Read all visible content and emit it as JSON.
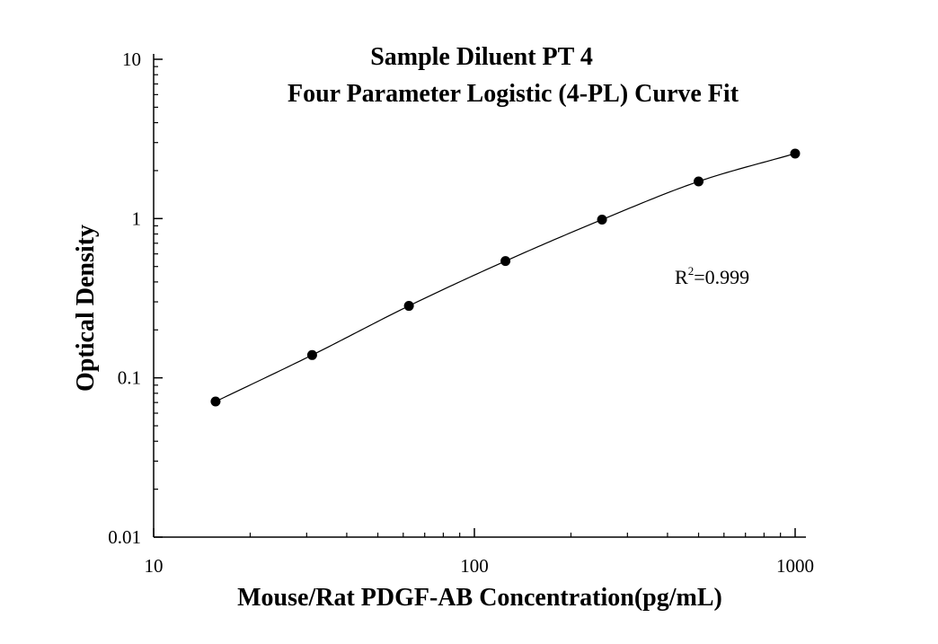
{
  "chart_data": {
    "type": "scatter",
    "title": "Sample Diluent PT 4",
    "subtitle": "Four Parameter Logistic (4-PL) Curve Fit",
    "xlabel": "Mouse/Rat PDGF-AB Concentration(pg/mL)",
    "ylabel": "Optical Density",
    "x_scale": "log",
    "y_scale": "log",
    "xlim": [
      10,
      1000
    ],
    "ylim": [
      0.01,
      10
    ],
    "x_ticks": [
      10,
      100,
      1000
    ],
    "x_tick_labels": [
      "10",
      "100",
      "1000"
    ],
    "y_ticks": [
      0.01,
      0.1,
      1,
      10
    ],
    "y_tick_labels": [
      "0.01",
      "0.1",
      "1",
      "10"
    ],
    "grid": false,
    "series": [
      {
        "x": [
          15.6,
          31.2,
          62.5,
          125,
          250,
          500,
          1000
        ],
        "y": [
          0.071,
          0.139,
          0.283,
          0.541,
          0.985,
          1.71,
          2.56
        ],
        "color": "#000000",
        "marker": "circle"
      }
    ],
    "fit_curve": {
      "model": "4-PL",
      "color": "#000000"
    },
    "annotation": {
      "base": "R",
      "superscript": "2",
      "value": "=0.999"
    }
  }
}
